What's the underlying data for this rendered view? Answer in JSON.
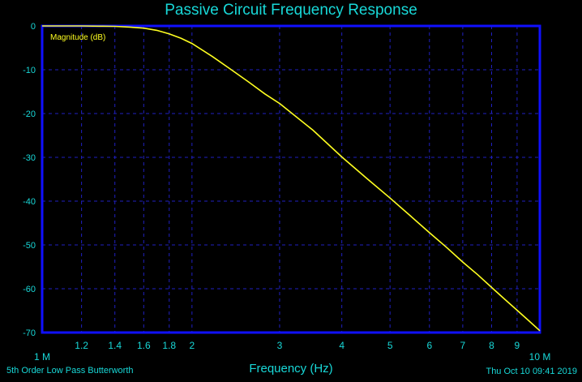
{
  "title": "Passive Circuit Frequency Response",
  "footer": {
    "circuit": "5th Order Low Pass Butterworth",
    "timestamp": "Thu Oct 10 09:41 2019"
  },
  "colors": {
    "background": "#000000",
    "frame": "#1010ff",
    "grid": "#2020c0",
    "text": "#18d8d8",
    "trace": "#ffff20"
  },
  "chart_data": {
    "type": "line",
    "title": "Passive Circuit Frequency Response",
    "xlabel": "Frequency (Hz)",
    "ylabel": "",
    "xscale": "log",
    "xlim": [
      1000000,
      10000000
    ],
    "ylim": [
      -70,
      0
    ],
    "grid": true,
    "x_ticks": [
      {
        "value": 1000000,
        "label": "1 M"
      },
      {
        "value": 1200000,
        "label": "1.2"
      },
      {
        "value": 1400000,
        "label": "1.4"
      },
      {
        "value": 1600000,
        "label": "1.6"
      },
      {
        "value": 1800000,
        "label": "1.8"
      },
      {
        "value": 2000000,
        "label": "2"
      },
      {
        "value": 3000000,
        "label": "3"
      },
      {
        "value": 4000000,
        "label": "4"
      },
      {
        "value": 5000000,
        "label": "5"
      },
      {
        "value": 6000000,
        "label": "6"
      },
      {
        "value": 7000000,
        "label": "7"
      },
      {
        "value": 8000000,
        "label": "8"
      },
      {
        "value": 9000000,
        "label": "9"
      },
      {
        "value": 10000000,
        "label": "10 M"
      }
    ],
    "y_ticks": [
      {
        "value": 0,
        "label": "0"
      },
      {
        "value": -10,
        "label": "-10"
      },
      {
        "value": -20,
        "label": "-20"
      },
      {
        "value": -30,
        "label": "-30"
      },
      {
        "value": -40,
        "label": "-40"
      },
      {
        "value": -50,
        "label": "-50"
      },
      {
        "value": -60,
        "label": "-60"
      },
      {
        "value": -70,
        "label": "-70"
      }
    ],
    "series": [
      {
        "name": "Magnitude (dB)",
        "x": [
          1000000,
          1100000,
          1200000,
          1300000,
          1400000,
          1500000,
          1600000,
          1700000,
          1800000,
          1900000,
          2000000,
          2200000,
          2400000,
          2600000,
          2800000,
          3000000,
          3500000,
          4000000,
          4500000,
          5000000,
          5500000,
          6000000,
          6500000,
          7000000,
          7500000,
          8000000,
          8500000,
          9000000,
          9500000,
          10000000
        ],
        "values": [
          0,
          0,
          0,
          -0.05,
          -0.1,
          -0.25,
          -0.5,
          -1.0,
          -1.8,
          -2.8,
          -4.0,
          -7.0,
          -10.0,
          -12.8,
          -15.5,
          -17.7,
          -23.8,
          -29.9,
          -34.9,
          -39.3,
          -43.4,
          -47.2,
          -50.6,
          -53.9,
          -56.8,
          -59.7,
          -62.4,
          -64.9,
          -67.3,
          -69.6
        ]
      }
    ]
  }
}
